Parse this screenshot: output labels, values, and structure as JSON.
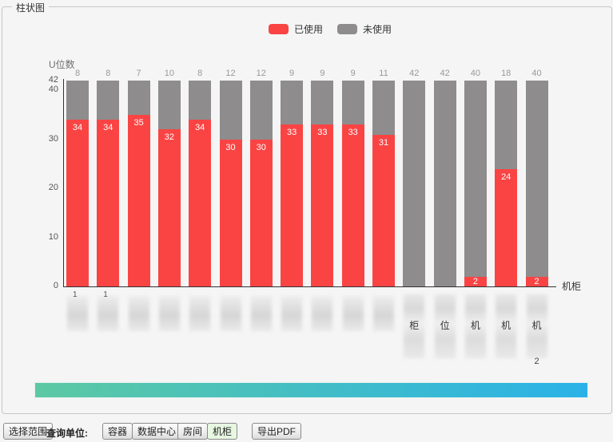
{
  "panel": {
    "title": "柱状图"
  },
  "chart_data": {
    "type": "bar",
    "stacked": true,
    "ylabel": "U位数",
    "xlabel": "机柜",
    "ylim": [
      0,
      42
    ],
    "yticks": [
      0,
      10,
      20,
      30,
      40,
      42
    ],
    "grid": false,
    "legend_position": "top",
    "legend": [
      "已使用",
      "未使用"
    ],
    "colors": {
      "used": "#fa4444",
      "unused": "#8e8c8c",
      "top_label": "#999999"
    },
    "series": [
      {
        "name": "已使用",
        "values": [
          34,
          34,
          35,
          32,
          34,
          30,
          30,
          33,
          33,
          33,
          31,
          0,
          0,
          2,
          24,
          2
        ]
      },
      {
        "name": "未使用",
        "values": [
          8,
          8,
          7,
          10,
          8,
          12,
          12,
          9,
          9,
          9,
          11,
          42,
          42,
          40,
          18,
          40
        ]
      }
    ],
    "categories": [
      {
        "blurred": true,
        "visible_text": "1"
      },
      {
        "blurred": true,
        "visible_text": "1"
      },
      {
        "blurred": true,
        "visible_text": ""
      },
      {
        "blurred": true,
        "visible_text": ""
      },
      {
        "blurred": true,
        "visible_text": ""
      },
      {
        "blurred": true,
        "visible_text": ""
      },
      {
        "blurred": true,
        "visible_text": ""
      },
      {
        "blurred": true,
        "visible_text": ""
      },
      {
        "blurred": true,
        "visible_text": ""
      },
      {
        "blurred": true,
        "visible_text": ""
      },
      {
        "blurred": true,
        "visible_text": ""
      },
      {
        "blurred": true,
        "visible_text": "柜"
      },
      {
        "blurred": true,
        "visible_text": "位"
      },
      {
        "blurred": true,
        "visible_text": "机"
      },
      {
        "blurred": true,
        "visible_text": "机"
      },
      {
        "blurred": true,
        "visible_text": "机",
        "visible_suffix": "2"
      }
    ]
  },
  "range_bar": {
    "gradient_from": "#5cc9a3",
    "gradient_to": "#2ab2e8"
  },
  "footer": {
    "select_range": "选择范围",
    "query_unit_label": "查询单位:",
    "unit_buttons": [
      {
        "label": "容器",
        "active": false
      },
      {
        "label": "数据中心",
        "active": false
      },
      {
        "label": "房间",
        "active": false
      },
      {
        "label": "机柜",
        "active": true
      }
    ],
    "export_pdf": "导出PDF"
  }
}
